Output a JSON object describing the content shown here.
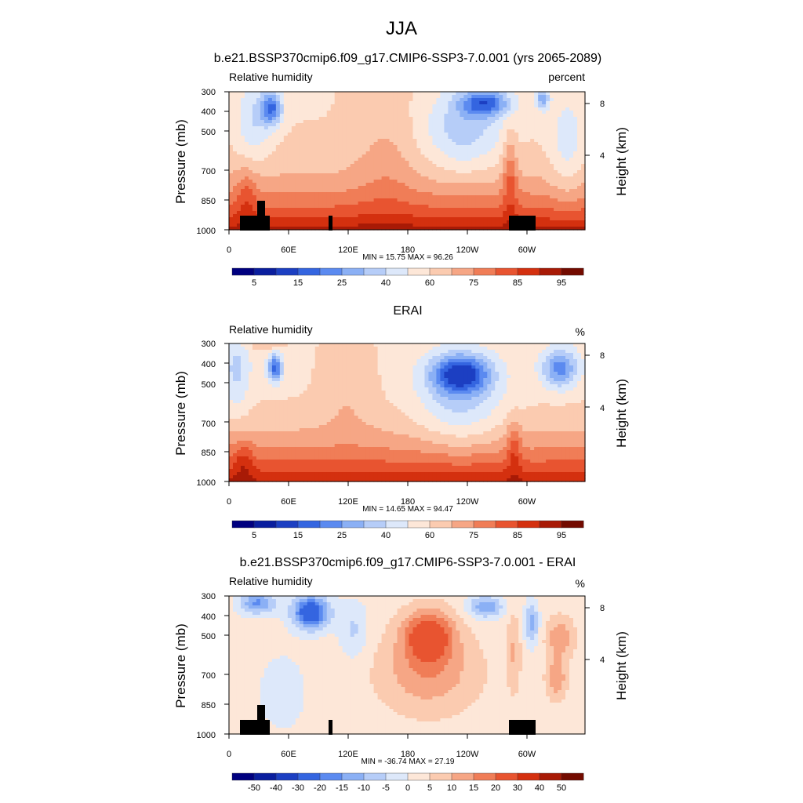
{
  "figure_title": "JJA",
  "chart_data": [
    {
      "type": "heatmap",
      "title": "b.e21.BSSP370cmip6.f09_g17.CMIP6-SSP3-7.0.001 (yrs 2065-2089)",
      "left_label": "Relative humidity",
      "units": "percent",
      "ylabel": "Pressure (mb)",
      "ylabel_right": "Height (km)",
      "x_ticks": [
        "0",
        "60E",
        "120E",
        "180",
        "120W",
        "60W"
      ],
      "y_ticks": [
        "300",
        "400",
        "500",
        "700",
        "850",
        "1000"
      ],
      "y_ticks_right": [
        "8",
        "4"
      ],
      "stats": "MIN =  15.75  MAX =  96.26",
      "colorbar_labels": [
        "5",
        "15",
        "25",
        "40",
        "60",
        "75",
        "85",
        "95"
      ],
      "colorbar_colors": [
        "#00007f",
        "#0a1e9e",
        "#1c3fc2",
        "#3465e0",
        "#5b8af0",
        "#8bb0f5",
        "#b6cdf8",
        "#dde8fa",
        "#fde7d8",
        "#fbcbb0",
        "#f6a685",
        "#f07d57",
        "#e85430",
        "#d4300f",
        "#a81a06",
        "#730b00"
      ],
      "field": "model",
      "has_topography": true
    },
    {
      "type": "heatmap",
      "title": "ERAI",
      "left_label": "Relative humidity",
      "units": "%",
      "ylabel": "Pressure (mb)",
      "ylabel_right": "Height (km)",
      "x_ticks": [
        "0",
        "60E",
        "120E",
        "180",
        "120W",
        "60W"
      ],
      "y_ticks": [
        "300",
        "400",
        "500",
        "700",
        "850",
        "1000"
      ],
      "y_ticks_right": [
        "8",
        "4"
      ],
      "stats": "MIN =  14.65  MAX =  94.47",
      "colorbar_labels": [
        "5",
        "15",
        "25",
        "40",
        "60",
        "75",
        "85",
        "95"
      ],
      "colorbar_colors": [
        "#00007f",
        "#0a1e9e",
        "#1c3fc2",
        "#3465e0",
        "#5b8af0",
        "#8bb0f5",
        "#b6cdf8",
        "#dde8fa",
        "#fde7d8",
        "#fbcbb0",
        "#f6a685",
        "#f07d57",
        "#e85430",
        "#d4300f",
        "#a81a06",
        "#730b00"
      ],
      "field": "obs",
      "has_topography": false
    },
    {
      "type": "heatmap",
      "title": "b.e21.BSSP370cmip6.f09_g17.CMIP6-SSP3-7.0.001 - ERAI",
      "left_label": "Relative humidity",
      "units": "%",
      "ylabel": "Pressure (mb)",
      "ylabel_right": "Height (km)",
      "x_ticks": [
        "0",
        "60E",
        "120E",
        "180",
        "120W",
        "60W"
      ],
      "y_ticks": [
        "300",
        "400",
        "500",
        "700",
        "850",
        "1000"
      ],
      "y_ticks_right": [
        "8",
        "4"
      ],
      "stats": "MIN = -36.74  MAX =  27.19",
      "colorbar_labels": [
        "-50",
        "-40",
        "-30",
        "-20",
        "-15",
        "-10",
        "-5",
        "0",
        "5",
        "10",
        "15",
        "20",
        "30",
        "40",
        "50"
      ],
      "colorbar_colors": [
        "#00007f",
        "#0a1e9e",
        "#1c3fc2",
        "#3465e0",
        "#5b8af0",
        "#8bb0f5",
        "#b6cdf8",
        "#dde8fa",
        "#fde7d8",
        "#fbcbb0",
        "#f6a685",
        "#f07d57",
        "#e85430",
        "#d4300f",
        "#a81a06",
        "#730b00"
      ],
      "field": "diff",
      "has_topography": true
    }
  ]
}
